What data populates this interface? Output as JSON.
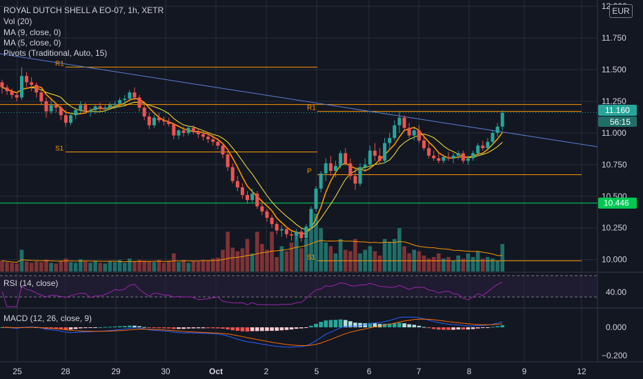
{
  "header": {
    "symbol_line": "ROYAL DUTCH SHELL A EO-07, 1h, XETR",
    "indicators": [
      "Vol (20)",
      "MA (9, close, 0)",
      "MA (5, close, 0)",
      "Pivots (Traditional, Auto, 15)"
    ],
    "currency": "EUR"
  },
  "price_axis": {
    "ticks": [
      "12.000",
      "11.750",
      "11.500",
      "11.250",
      "11.000",
      "10.750",
      "10.500",
      "10.250",
      "10.000"
    ],
    "last_price": "11.160",
    "countdown": "56:15",
    "horizontal_level": "10.446"
  },
  "pivot_labels": [
    "R1",
    "S1",
    "R1",
    "P",
    "S1"
  ],
  "rsi": {
    "label": "RSI (14, close)",
    "tick": "40.00"
  },
  "macd": {
    "label": "MACD (12, 26, close, 9)",
    "ticks": [
      "0.000",
      "−0.200"
    ]
  },
  "time_axis": {
    "labels": [
      "25",
      "28",
      "29",
      "30",
      "Oct",
      "2",
      "5",
      "6",
      "7",
      "8",
      "9",
      "12"
    ]
  },
  "colors": {
    "up": "#26a69a",
    "down": "#ef5350",
    "pivot": "#ff9800",
    "ma9": "#ffeb3b",
    "ma5": "#ff9800",
    "trendline": "#5b7fd6",
    "level": "#00c853",
    "rsi": "#9c27b0",
    "macd_line": "#2962ff",
    "signal_line": "#ff6d00"
  },
  "chart_data": {
    "type": "candlestick",
    "interval": "1h",
    "candles": [
      [
        11.4,
        11.42,
        11.31,
        11.36
      ],
      [
        11.36,
        11.38,
        11.3,
        11.33
      ],
      [
        11.33,
        11.35,
        11.27,
        11.3
      ],
      [
        11.3,
        11.32,
        11.25,
        11.28
      ],
      [
        11.28,
        11.52,
        11.26,
        11.45
      ],
      [
        11.45,
        11.48,
        11.36,
        11.4
      ],
      [
        11.4,
        11.44,
        11.33,
        11.38
      ],
      [
        11.38,
        11.4,
        11.28,
        11.32
      ],
      [
        11.32,
        11.34,
        11.22,
        11.25
      ],
      [
        11.25,
        11.28,
        11.12,
        11.17
      ],
      [
        11.17,
        11.26,
        11.15,
        11.22
      ],
      [
        11.22,
        11.24,
        11.16,
        11.2
      ],
      [
        11.2,
        11.22,
        11.1,
        11.14
      ],
      [
        11.14,
        11.18,
        11.05,
        11.08
      ],
      [
        11.08,
        11.16,
        11.06,
        11.14
      ],
      [
        11.14,
        11.2,
        11.11,
        11.18
      ],
      [
        11.18,
        11.25,
        11.16,
        11.22
      ],
      [
        11.22,
        11.24,
        11.15,
        11.17
      ],
      [
        11.17,
        11.2,
        11.13,
        11.18
      ],
      [
        11.18,
        11.22,
        11.15,
        11.21
      ],
      [
        11.21,
        11.24,
        11.17,
        11.19
      ],
      [
        11.19,
        11.22,
        11.16,
        11.2
      ],
      [
        11.2,
        11.24,
        11.18,
        11.22
      ],
      [
        11.22,
        11.25,
        11.19,
        11.23
      ],
      [
        11.23,
        11.28,
        11.2,
        11.26
      ],
      [
        11.26,
        11.3,
        11.23,
        11.27
      ],
      [
        11.27,
        11.34,
        11.25,
        11.32
      ],
      [
        11.32,
        11.36,
        11.26,
        11.28
      ],
      [
        11.28,
        11.3,
        11.17,
        11.2
      ],
      [
        11.2,
        11.22,
        11.1,
        11.13
      ],
      [
        11.13,
        11.16,
        11.03,
        11.06
      ],
      [
        11.06,
        11.14,
        11.04,
        11.12
      ],
      [
        11.12,
        11.16,
        11.08,
        11.1
      ],
      [
        11.1,
        11.13,
        11.06,
        11.09
      ],
      [
        11.09,
        11.12,
        11.05,
        11.07
      ],
      [
        11.07,
        11.08,
        10.95,
        10.98
      ],
      [
        10.98,
        11.03,
        10.95,
        11.02
      ],
      [
        11.02,
        11.05,
        10.97,
        11.0
      ],
      [
        11.0,
        11.06,
        10.98,
        11.04
      ],
      [
        11.04,
        11.06,
        10.99,
        11.01
      ],
      [
        11.01,
        11.03,
        10.96,
        10.99
      ],
      [
        10.99,
        11.02,
        10.94,
        10.97
      ],
      [
        10.97,
        11.0,
        10.92,
        10.95
      ],
      [
        10.95,
        10.98,
        10.9,
        10.93
      ],
      [
        10.93,
        10.96,
        10.87,
        10.9
      ],
      [
        10.9,
        10.92,
        10.8,
        10.83
      ],
      [
        10.83,
        10.85,
        10.7,
        10.73
      ],
      [
        10.73,
        10.76,
        10.6,
        10.62
      ],
      [
        10.62,
        10.66,
        10.54,
        10.57
      ],
      [
        10.57,
        10.6,
        10.48,
        10.51
      ],
      [
        10.51,
        10.54,
        10.44,
        10.47
      ],
      [
        10.47,
        10.56,
        10.45,
        10.52
      ],
      [
        10.52,
        10.54,
        10.4,
        10.42
      ],
      [
        10.42,
        10.45,
        10.35,
        10.38
      ],
      [
        10.38,
        10.4,
        10.3,
        10.33
      ],
      [
        10.33,
        10.35,
        10.25,
        10.28
      ],
      [
        10.28,
        10.3,
        10.2,
        10.23
      ],
      [
        10.23,
        10.27,
        10.18,
        10.24
      ],
      [
        10.24,
        10.26,
        10.17,
        10.2
      ],
      [
        10.2,
        10.23,
        10.15,
        10.19
      ],
      [
        10.19,
        10.24,
        10.16,
        10.22
      ],
      [
        10.22,
        10.25,
        10.14,
        10.17
      ],
      [
        10.17,
        10.28,
        10.16,
        10.26
      ],
      [
        10.26,
        10.42,
        10.24,
        10.4
      ],
      [
        10.4,
        10.58,
        10.38,
        10.56
      ],
      [
        10.56,
        10.7,
        10.53,
        10.68
      ],
      [
        10.68,
        10.8,
        10.62,
        10.76
      ],
      [
        10.76,
        10.82,
        10.66,
        10.7
      ],
      [
        10.7,
        10.78,
        10.65,
        10.74
      ],
      [
        10.74,
        10.86,
        10.72,
        10.84
      ],
      [
        10.84,
        10.88,
        10.74,
        10.76
      ],
      [
        10.76,
        10.8,
        10.63,
        10.66
      ],
      [
        10.66,
        10.72,
        10.55,
        10.6
      ],
      [
        10.6,
        10.76,
        10.58,
        10.73
      ],
      [
        10.73,
        10.8,
        10.7,
        10.75
      ],
      [
        10.75,
        10.9,
        10.72,
        10.86
      ],
      [
        10.86,
        10.92,
        10.78,
        10.82
      ],
      [
        10.82,
        10.88,
        10.76,
        10.78
      ],
      [
        10.78,
        10.96,
        10.76,
        10.92
      ],
      [
        10.92,
        11.0,
        10.86,
        10.96
      ],
      [
        10.96,
        11.1,
        10.94,
        11.06
      ],
      [
        11.06,
        11.17,
        11.0,
        11.12
      ],
      [
        11.12,
        11.14,
        11.02,
        11.04
      ],
      [
        11.04,
        11.08,
        10.96,
        10.98
      ],
      [
        10.98,
        11.04,
        10.94,
        11.02
      ],
      [
        11.02,
        11.06,
        10.92,
        10.94
      ],
      [
        10.94,
        10.98,
        10.86,
        10.88
      ],
      [
        10.88,
        10.92,
        10.8,
        10.82
      ],
      [
        10.82,
        10.86,
        10.78,
        10.8
      ],
      [
        10.8,
        10.84,
        10.76,
        10.78
      ],
      [
        10.78,
        10.83,
        10.76,
        10.81
      ],
      [
        10.81,
        10.85,
        10.78,
        10.8
      ],
      [
        10.8,
        10.84,
        10.76,
        10.82
      ],
      [
        10.82,
        10.86,
        10.79,
        10.84
      ],
      [
        10.84,
        10.86,
        10.76,
        10.78
      ],
      [
        10.78,
        10.82,
        10.75,
        10.8
      ],
      [
        10.8,
        10.86,
        10.78,
        10.84
      ],
      [
        10.84,
        10.92,
        10.82,
        10.9
      ],
      [
        10.9,
        10.94,
        10.86,
        10.88
      ],
      [
        10.88,
        10.96,
        10.86,
        10.93
      ],
      [
        10.93,
        11.02,
        10.9,
        11.0
      ],
      [
        11.0,
        11.08,
        10.97,
        11.05
      ],
      [
        11.05,
        11.18,
        11.02,
        11.16
      ]
    ],
    "volume": [
      15,
      13,
      12,
      11,
      30,
      14,
      12,
      14,
      13,
      16,
      12,
      11,
      15,
      18,
      13,
      12,
      17,
      14,
      12,
      15,
      12,
      11,
      14,
      13,
      16,
      12,
      18,
      14,
      16,
      15,
      14,
      13,
      16,
      12,
      15,
      25,
      13,
      16,
      12,
      15,
      14,
      16,
      15,
      18,
      19,
      30,
      55,
      33,
      28,
      32,
      45,
      25,
      55,
      38,
      30,
      55,
      20,
      35,
      28,
      40,
      55,
      32,
      45,
      65,
      80,
      60,
      40,
      35,
      25,
      45,
      30,
      28,
      45,
      25,
      30,
      35,
      28,
      22,
      45,
      40,
      45,
      60,
      35,
      25,
      30,
      28,
      22,
      18,
      20,
      25,
      18,
      20,
      15,
      22,
      18,
      25,
      20,
      28,
      18,
      20,
      18,
      15,
      38
    ],
    "price_range": [
      9.9,
      12.05
    ],
    "pivot_levels": [
      {
        "label": "R1",
        "value": 11.52
      },
      {
        "label": "S1",
        "value": 10.85
      },
      {
        "label": "R1",
        "value": 11.17
      },
      {
        "label": "P",
        "value": 10.67
      },
      {
        "label": "S1",
        "value": 9.99
      }
    ],
    "horizontal_line": 10.446,
    "last_price": 11.16,
    "legend_placement": "top-left"
  }
}
